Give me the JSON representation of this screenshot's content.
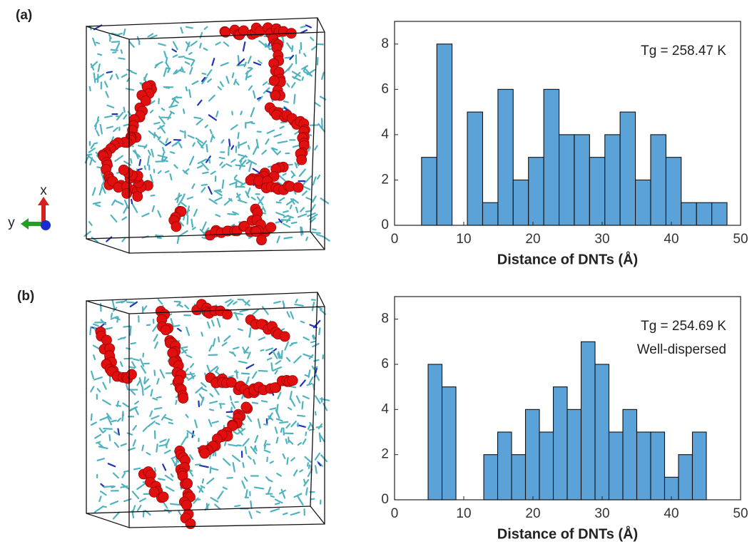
{
  "panel_labels": [
    "(a)",
    "(b)"
  ],
  "axes_labels": [
    "x",
    "y"
  ],
  "chart_data": [
    {
      "type": "histogram",
      "color": "#5aa2d8",
      "bins": [
        3.9,
        6.11,
        8.31,
        10.52,
        12.73,
        14.94,
        17.14,
        19.35,
        21.56,
        23.77,
        25.97,
        28.18,
        30.39,
        32.59,
        34.8,
        37.01,
        39.22,
        41.42,
        43.63,
        45.84,
        48.04
      ],
      "values": [
        3,
        8,
        0,
        5,
        1,
        6,
        2,
        3,
        6,
        4,
        4,
        3,
        4,
        5,
        2,
        4,
        3,
        1,
        1,
        1
      ],
      "xlim": [
        0,
        50
      ],
      "xticks": [
        0,
        10,
        20,
        30,
        40,
        50
      ],
      "ylim": [
        0,
        9
      ],
      "yticks": [
        0,
        2,
        4,
        6,
        8
      ],
      "xlabel": "Distance of DNTs (Å)",
      "annotations": [
        "Tg = 258.47 K"
      ]
    },
    {
      "type": "histogram",
      "color": "#5aa2d8",
      "bins": [
        4.85,
        6.86,
        8.87,
        10.88,
        12.89,
        14.9,
        16.91,
        18.92,
        20.93,
        22.94,
        24.95,
        26.96,
        28.97,
        30.98,
        32.99,
        35.0,
        37.01,
        39.02,
        41.03,
        43.04,
        45.05
      ],
      "values": [
        6,
        5,
        0,
        0,
        2,
        3,
        2,
        4,
        3,
        5,
        4,
        7,
        6,
        3,
        4,
        3,
        3,
        1,
        2,
        3
      ],
      "xlim": [
        0,
        50
      ],
      "xticks": [
        0,
        10,
        20,
        30,
        40,
        50
      ],
      "ylim": [
        0,
        9
      ],
      "yticks": [
        0,
        2,
        4,
        6,
        8
      ],
      "xlabel": "Distance of DNTs (Å)",
      "annotations": [
        "Tg = 254.69 K",
        "Well-dispersed"
      ]
    }
  ]
}
